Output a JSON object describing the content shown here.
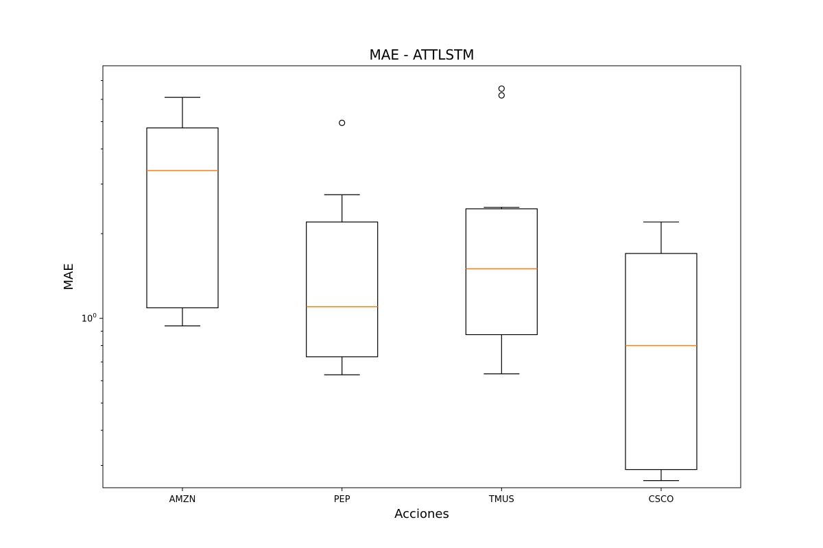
{
  "chart_data": {
    "type": "boxplot",
    "title": "MAE - ATTLSTM",
    "xlabel": "Acciones",
    "ylabel": "MAE",
    "y_scale": "log",
    "ylim": [
      0.25,
      7.9
    ],
    "y_tick_labels": [
      {
        "value": 1,
        "label_base": "10",
        "label_exp": "0"
      }
    ],
    "grid": false,
    "categories": [
      "AMZN",
      "PEP",
      "TMUS",
      "CSCO"
    ],
    "boxes": [
      {
        "name": "AMZN",
        "whisker_low": 0.94,
        "q1": 1.09,
        "median": 3.35,
        "q3": 4.75,
        "whisker_high": 6.1,
        "fliers": []
      },
      {
        "name": "PEP",
        "whisker_low": 0.63,
        "q1": 0.73,
        "median": 1.1,
        "q3": 2.2,
        "whisker_high": 2.75,
        "fliers": [
          4.95
        ]
      },
      {
        "name": "TMUS",
        "whisker_low": 0.635,
        "q1": 0.875,
        "median": 1.5,
        "q3": 2.45,
        "whisker_high": 2.48,
        "fliers": [
          6.2,
          6.55
        ]
      },
      {
        "name": "CSCO",
        "whisker_low": 0.265,
        "q1": 0.29,
        "median": 0.8,
        "q3": 1.7,
        "whisker_high": 2.2,
        "fliers": []
      }
    ],
    "colors": {
      "box": "#000000",
      "median": "#ff7f0e",
      "axes": "#000000"
    }
  }
}
